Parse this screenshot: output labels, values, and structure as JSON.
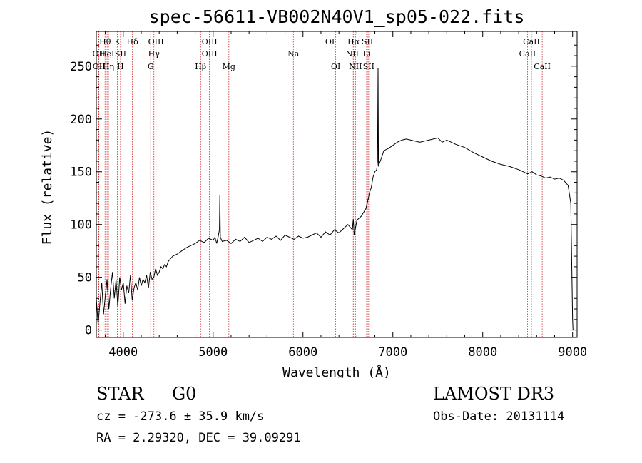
{
  "chart_data": {
    "type": "line",
    "title": "spec-56611-VB002N40V1_sp05-022.fits",
    "xlabel": "Wavelength (Å)",
    "ylabel": "Flux (relative)",
    "xlim": [
      3700,
      9050
    ],
    "ylim": [
      -7,
      283
    ],
    "xticks": [
      4000,
      5000,
      6000,
      7000,
      8000,
      9000
    ],
    "yticks": [
      0,
      50,
      100,
      150,
      200,
      250
    ],
    "series": [
      {
        "name": "flux",
        "x": [
          3700,
          3720,
          3740,
          3760,
          3780,
          3800,
          3820,
          3840,
          3860,
          3880,
          3900,
          3920,
          3940,
          3960,
          3980,
          4000,
          4020,
          4040,
          4060,
          4080,
          4100,
          4120,
          4140,
          4160,
          4180,
          4200,
          4220,
          4240,
          4260,
          4280,
          4300,
          4320,
          4340,
          4360,
          4380,
          4400,
          4420,
          4440,
          4460,
          4480,
          4500,
          4550,
          4600,
          4650,
          4700,
          4750,
          4800,
          4850,
          4900,
          4950,
          5000,
          5020,
          5040,
          5060,
          5070,
          5075,
          5080,
          5100,
          5150,
          5200,
          5250,
          5300,
          5350,
          5400,
          5450,
          5500,
          5550,
          5600,
          5650,
          5700,
          5750,
          5800,
          5850,
          5900,
          5950,
          6000,
          6050,
          6100,
          6150,
          6200,
          6250,
          6300,
          6350,
          6400,
          6450,
          6500,
          6550,
          6560,
          6570,
          6600,
          6650,
          6700,
          6720,
          6740,
          6760,
          6780,
          6800,
          6820,
          6830,
          6835,
          6840,
          6850,
          6860,
          6880,
          6900,
          6950,
          7000,
          7050,
          7100,
          7150,
          7200,
          7300,
          7400,
          7500,
          7550,
          7600,
          7650,
          7700,
          7800,
          7900,
          8000,
          8100,
          8200,
          8300,
          8400,
          8450,
          8500,
          8550,
          8600,
          8650,
          8700,
          8750,
          8800,
          8850,
          8900,
          8950,
          8980,
          9000,
          9005
        ],
        "values": [
          30,
          5,
          25,
          45,
          15,
          32,
          48,
          20,
          40,
          55,
          30,
          48,
          22,
          50,
          38,
          45,
          25,
          42,
          35,
          52,
          28,
          40,
          45,
          38,
          50,
          42,
          48,
          45,
          52,
          40,
          55,
          48,
          50,
          58,
          52,
          55,
          60,
          58,
          62,
          60,
          65,
          70,
          72,
          75,
          78,
          80,
          82,
          85,
          83,
          87,
          85,
          88,
          82,
          90,
          95,
          128,
          88,
          84,
          85,
          82,
          86,
          84,
          88,
          83,
          85,
          87,
          84,
          88,
          86,
          89,
          85,
          90,
          88,
          86,
          89,
          87,
          88,
          90,
          92,
          88,
          93,
          90,
          95,
          92,
          96,
          100,
          95,
          105,
          90,
          104,
          108,
          115,
          122,
          130,
          135,
          145,
          150,
          152,
          160,
          248,
          155,
          158,
          160,
          165,
          170,
          172,
          175,
          178,
          180,
          181,
          180,
          178,
          180,
          182,
          178,
          180,
          178,
          176,
          173,
          168,
          164,
          160,
          157,
          155,
          152,
          150,
          148,
          150,
          147,
          146,
          144,
          145,
          143,
          144,
          142,
          137,
          120,
          10,
          0
        ]
      }
    ],
    "lines": [
      {
        "label": "Hθ",
        "x": 3797,
        "row": 1
      },
      {
        "label": "OII",
        "x": 3727,
        "row": 2
      },
      {
        "label": "OII",
        "x": 3729,
        "row": 3
      },
      {
        "label": "HeI",
        "x": 3820,
        "row": 2
      },
      {
        "label": "Hη",
        "x": 3835,
        "row": 3
      },
      {
        "label": "K",
        "x": 3934,
        "row": 1
      },
      {
        "label": "SII",
        "x": 3970,
        "row": 2
      },
      {
        "label": "H",
        "x": 3969,
        "row": 3
      },
      {
        "label": "Hδ",
        "x": 4102,
        "row": 1
      },
      {
        "label": "OIII",
        "x": 4364,
        "row": 1
      },
      {
        "label": "Hγ",
        "x": 4341,
        "row": 2
      },
      {
        "label": "G",
        "x": 4305,
        "row": 3
      },
      {
        "label": "OIII",
        "x": 4960,
        "row": 1
      },
      {
        "label": "OIII",
        "x": 4960,
        "row": 2
      },
      {
        "label": "Hβ",
        "x": 4861,
        "row": 3
      },
      {
        "label": "Mg",
        "x": 5175,
        "row": 3
      },
      {
        "label": "Na",
        "x": 5893,
        "row": 2
      },
      {
        "label": "OI",
        "x": 6300,
        "row": 1
      },
      {
        "label": "OI",
        "x": 6364,
        "row": 3
      },
      {
        "label": "Hα",
        "x": 6563,
        "row": 1
      },
      {
        "label": "NII",
        "x": 6548,
        "row": 2
      },
      {
        "label": "NII",
        "x": 6584,
        "row": 3
      },
      {
        "label": "SII",
        "x": 6717,
        "row": 1
      },
      {
        "label": "Li",
        "x": 6708,
        "row": 2
      },
      {
        "label": "SII",
        "x": 6731,
        "row": 3
      },
      {
        "label": "CaII",
        "x": 8542,
        "row": 1
      },
      {
        "label": "CaII",
        "x": 8498,
        "row": 2
      },
      {
        "label": "CaII",
        "x": 8662,
        "row": 3
      }
    ],
    "colors": {
      "spectrum": "#000000",
      "line_markers": "#cc3333"
    }
  },
  "info": {
    "object_class": "STAR",
    "subclass": "G0",
    "survey": "LAMOST DR3",
    "redshift": "cz = -273.6 ± 35.9 km/s",
    "obs_date": "Obs-Date: 20131114",
    "coords": "RA =   2.29320, DEC =  39.09291"
  }
}
